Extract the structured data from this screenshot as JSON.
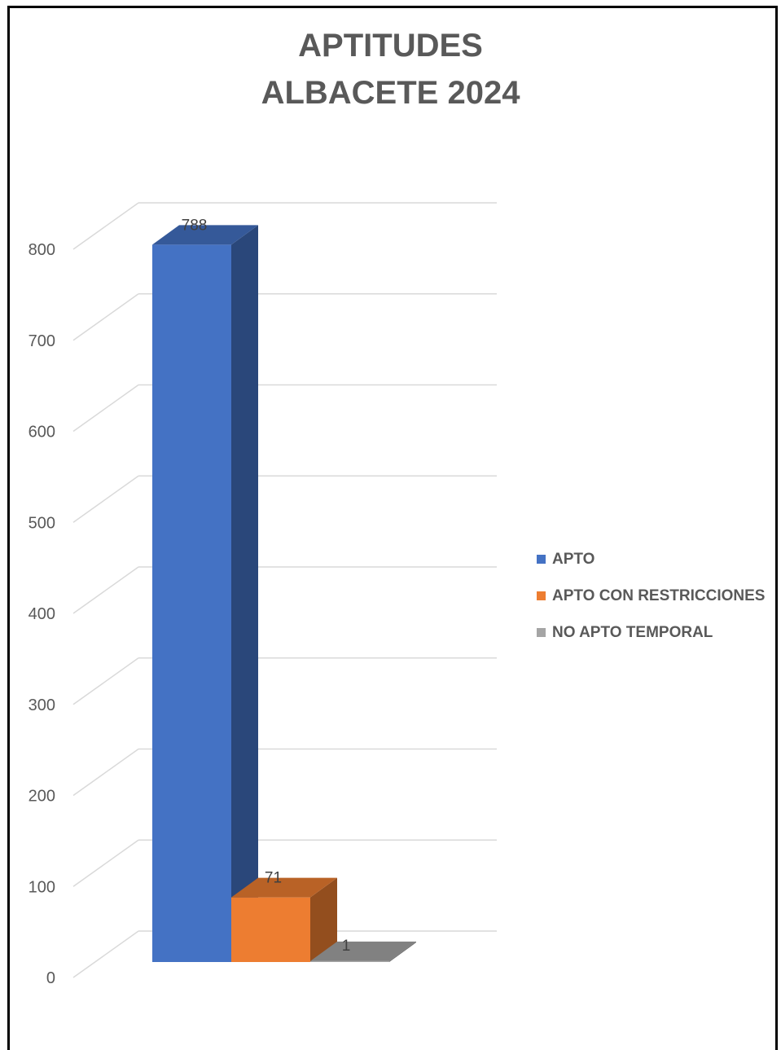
{
  "chart_data": {
    "type": "bar",
    "title": "APTITUDES",
    "subtitle": "ALBACETE 2024",
    "categories": [
      "APTO",
      "APTO CON RESTRICCIONES",
      "NO APTO TEMPORAL"
    ],
    "values": [
      788,
      71,
      1
    ],
    "colors": [
      "#4472C4",
      "#ED7D31",
      "#A5A5A5"
    ],
    "ylim": [
      0,
      800
    ],
    "yticks": [
      0,
      100,
      200,
      300,
      400,
      500,
      600,
      700,
      800
    ],
    "grid": true,
    "legend_position": "right",
    "data_labels": [
      "788",
      "71",
      "1"
    ],
    "style": "3d-column"
  }
}
